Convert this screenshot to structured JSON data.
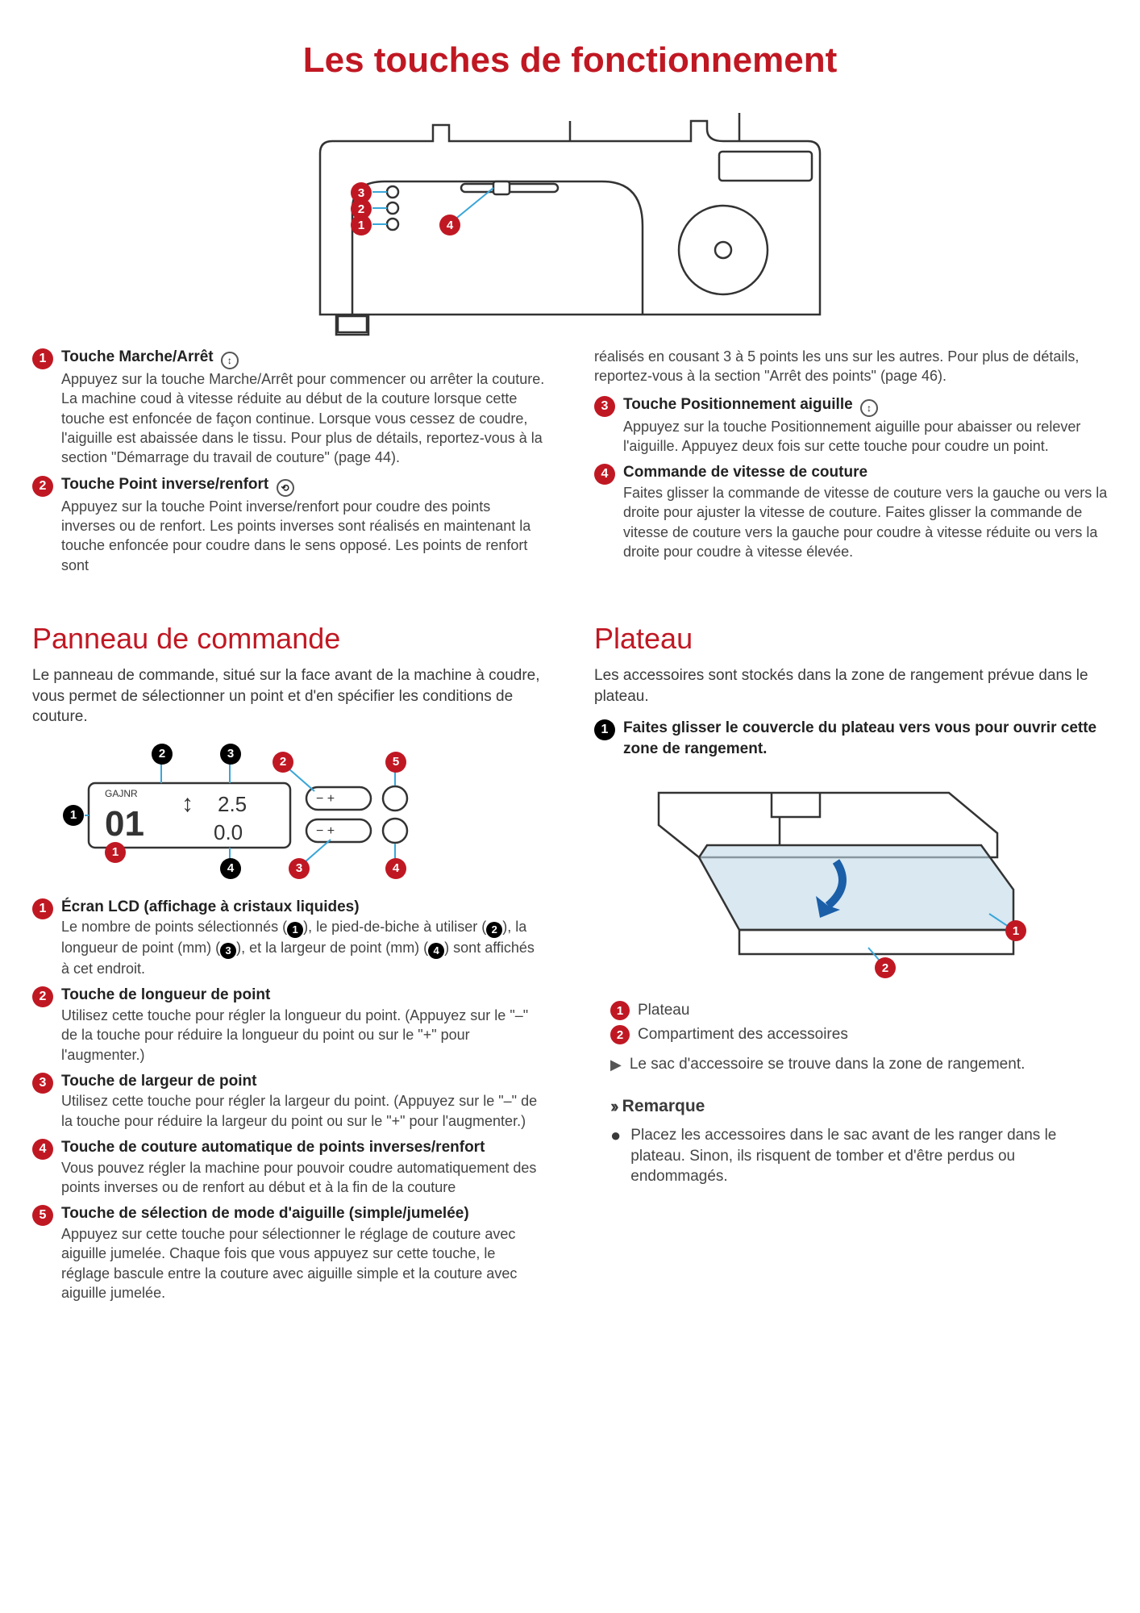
{
  "colors": {
    "accent": "#c01823",
    "text": "#3a3a3a",
    "black": "#000000"
  },
  "mainTitle": "Les touches de fonctionnement",
  "topItems": {
    "left": [
      {
        "n": "1",
        "title": "Touche Marche/Arrêt",
        "icon": "↕",
        "body": "Appuyez sur la touche Marche/Arrêt pour commencer ou arrêter la couture. La machine coud à vitesse réduite au début de la couture lorsque cette touche est enfoncée de façon continue. Lorsque vous cessez de coudre, l'aiguille est abaissée dans le tissu. Pour plus de détails, reportez-vous à la section \"Démarrage du travail de couture\" (page 44)."
      },
      {
        "n": "2",
        "title": "Touche Point inverse/renfort",
        "icon": "⟲",
        "body": "Appuyez sur la touche Point inverse/renfort pour coudre des points inverses ou de renfort. Les points inverses sont réalisés en maintenant la touche enfoncée pour coudre dans le sens opposé. Les points de renfort sont"
      }
    ],
    "right": [
      {
        "pre": "réalisés en cousant 3 à 5 points les uns sur les autres. Pour plus de détails, reportez-vous à la section \"Arrêt des points\" (page 46)."
      },
      {
        "n": "3",
        "title": "Touche Positionnement aiguille",
        "icon": "↕",
        "body": "Appuyez sur la touche Positionnement aiguille pour abaisser ou relever l'aiguille. Appuyez deux fois sur cette touche pour coudre un point."
      },
      {
        "n": "4",
        "title": "Commande de vitesse de couture",
        "body": "Faites glisser la commande de vitesse de couture vers la gauche ou vers la droite pour ajuster la vitesse de couture. Faites glisser la commande de vitesse de couture vers la gauche pour coudre à vitesse réduite ou vers la droite pour coudre à vitesse élevée."
      }
    ]
  },
  "panel": {
    "title": "Panneau de commande",
    "intro": "Le panneau de commande, situé sur la face avant de la machine à coudre, vous permet de sélectionner un point et d'en spécifier les conditions de couture.",
    "lcd": {
      "label": "GAJNR",
      "val1": "01",
      "val2": "2.5",
      "val3": "0.0"
    },
    "items": [
      {
        "n": "1",
        "title": "Écran LCD (affichage à cristaux liquides)",
        "body": "Le nombre de points sélectionnés ({1}), le pied-de-biche à utiliser ({2}), la longueur de point (mm) ({3}), et la largeur de point (mm) ({4}) sont affichés à cet endroit."
      },
      {
        "n": "2",
        "title": "Touche de longueur de point",
        "body": "Utilisez cette touche pour régler la longueur du point. (Appuyez sur le \"–\" de la touche pour réduire la longueur du point ou sur le \"+\" pour l'augmenter.)"
      },
      {
        "n": "3",
        "title": "Touche de largeur de point",
        "body": "Utilisez cette touche pour régler la largeur du point. (Appuyez sur le \"–\" de la touche pour réduire la largeur du point ou sur le \"+\" pour l'augmenter.)"
      },
      {
        "n": "4",
        "title": "Touche de couture automatique de points inverses/renfort",
        "body": "Vous pouvez régler la machine pour pouvoir coudre automatiquement des points inverses ou de renfort au début et à la fin de la couture"
      },
      {
        "n": "5",
        "title": "Touche de sélection de mode d'aiguille (simple/jumelée)",
        "body": "Appuyez sur cette touche pour sélectionner le réglage de couture avec aiguille jumelée. Chaque fois que vous appuyez sur cette touche, le réglage bascule entre la couture avec aiguille simple et la couture avec aiguille jumelée."
      }
    ]
  },
  "plateau": {
    "title": "Plateau",
    "intro": "Les accessoires sont stockés dans la zone de rangement prévue dans le plateau.",
    "step": {
      "n": "1",
      "text": "Faites glisser le couvercle du plateau vers vous pour ouvrir cette zone de rangement."
    },
    "legend": [
      {
        "n": "1",
        "label": "Plateau"
      },
      {
        "n": "2",
        "label": "Compartiment des accessoires"
      }
    ],
    "note": "Le sac d'accessoire se trouve dans la zone de rangement.",
    "remarqueTitle": "Remarque",
    "remarqueBody": "Placez les accessoires dans le sac avant de les ranger dans le plateau. Sinon, ils risquent de tomber et d'être perdus ou endommagés."
  }
}
